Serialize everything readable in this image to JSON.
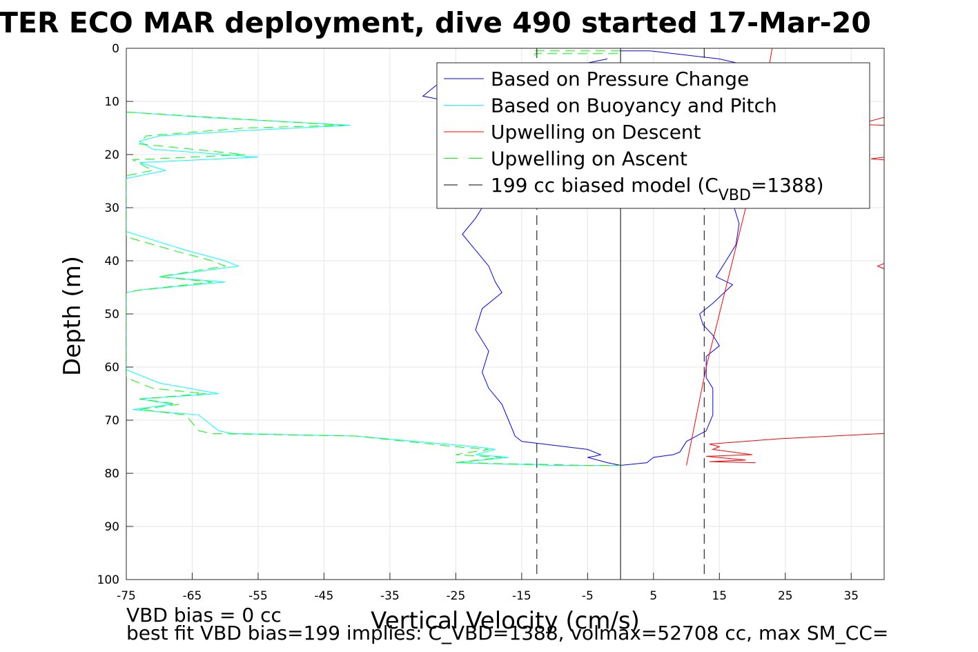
{
  "chart_data": {
    "type": "line",
    "title": "TER ECO MAR deployment, dive 490 started 17-Mar-20",
    "xlabel": "Vertical Velocity (cm/s)",
    "ylabel": "Depth (m)",
    "xlim": [
      -75,
      40
    ],
    "ylim": [
      0,
      100
    ],
    "y_reversed": true,
    "grid": true,
    "xticks": [
      -75,
      -65,
      -55,
      -45,
      -35,
      -25,
      -15,
      -5,
      5,
      15,
      25,
      35
    ],
    "yticks": [
      0,
      10,
      20,
      30,
      40,
      50,
      60,
      70,
      80,
      90,
      100
    ],
    "legend": {
      "placement": "top-right",
      "entries": [
        {
          "label": "Based on Pressure Change",
          "color": "#0000ff",
          "style": "solid"
        },
        {
          "label": "Based on Buoyancy and Pitch",
          "color": "#00ffff",
          "style": "solid"
        },
        {
          "label": "Upwelling on Descent",
          "color": "#ff0000",
          "style": "solid"
        },
        {
          "label": "Upwelling on Ascent",
          "color": "#00ff00",
          "style": "dashed"
        },
        {
          "label": "199 cc biased model (C",
          "label_sub": "VBD",
          "label_tail": "=1388)",
          "color": "#000000",
          "style": "dashed"
        }
      ]
    },
    "series": [
      {
        "name": "Based on Pressure Change",
        "color": "#0000ff",
        "dash": "",
        "points": [
          [
            0,
            0.5
          ],
          [
            4.5,
            0.5
          ],
          [
            15,
            2
          ],
          [
            22,
            4
          ],
          [
            17,
            7
          ],
          [
            10,
            12
          ],
          [
            8,
            18
          ],
          [
            9,
            25
          ],
          [
            17,
            29
          ],
          [
            18,
            33
          ],
          [
            17.5,
            37
          ],
          [
            16,
            40
          ],
          [
            14.5,
            43
          ],
          [
            17,
            44.5
          ],
          [
            14,
            48
          ],
          [
            12,
            50
          ],
          [
            12.5,
            52
          ],
          [
            14,
            54
          ],
          [
            15,
            56
          ],
          [
            13,
            58
          ],
          [
            13,
            62
          ],
          [
            14,
            64
          ],
          [
            14,
            69
          ],
          [
            13,
            72
          ],
          [
            10,
            74
          ],
          [
            9,
            76
          ],
          [
            8,
            76.5
          ],
          [
            5,
            77
          ],
          [
            4,
            78
          ],
          [
            0,
            78.5
          ],
          [
            -2,
            78
          ],
          [
            -5,
            77
          ],
          [
            -4,
            76.8
          ],
          [
            -3,
            76.5
          ],
          [
            -5,
            75.5
          ],
          [
            -15,
            74
          ],
          [
            -16,
            73
          ],
          [
            -17,
            70
          ],
          [
            -18,
            67
          ],
          [
            -20,
            64
          ],
          [
            -21,
            61
          ],
          [
            -20,
            57
          ],
          [
            -21,
            55
          ],
          [
            -22,
            53
          ],
          [
            -21,
            49
          ],
          [
            -18,
            46
          ],
          [
            -19,
            44
          ],
          [
            -20,
            41
          ],
          [
            -22,
            38
          ],
          [
            -24,
            35
          ],
          [
            -22,
            32
          ],
          [
            -20,
            28
          ],
          [
            -18,
            24
          ],
          [
            -21,
            16
          ],
          [
            -26,
            10
          ],
          [
            -30,
            9
          ],
          [
            -28,
            7
          ],
          [
            -18,
            5
          ],
          [
            -8,
            3.5
          ],
          [
            -2,
            2
          ]
        ]
      },
      {
        "name": "Based on Buoyancy and Pitch",
        "color": "#00ffff",
        "dash": "",
        "points": [
          [
            -75,
            12
          ],
          [
            -63,
            13
          ],
          [
            -41,
            14.5
          ],
          [
            -57,
            15.5
          ],
          [
            -70,
            16.5
          ],
          [
            -73,
            17.5
          ],
          [
            -71,
            19
          ],
          [
            -55,
            20.5
          ],
          [
            -73,
            21.5
          ],
          [
            -69,
            23
          ],
          [
            -75,
            24.5
          ],
          [
            -75,
            34.5
          ],
          [
            -66,
            38
          ],
          [
            -60,
            40
          ],
          [
            -58,
            41
          ],
          [
            -70,
            43
          ],
          [
            -60,
            44
          ],
          [
            -73,
            45.5
          ],
          [
            -75,
            46
          ],
          [
            -75,
            60.5
          ],
          [
            -70,
            63
          ],
          [
            -61,
            65
          ],
          [
            -73,
            66
          ],
          [
            -68,
            67
          ],
          [
            -74,
            68
          ],
          [
            -64,
            69
          ],
          [
            -61,
            72
          ],
          [
            -59,
            72.5
          ],
          [
            -40,
            73
          ],
          [
            -22,
            75
          ],
          [
            -19,
            75.5
          ],
          [
            -22,
            76.5
          ],
          [
            -17,
            77
          ],
          [
            -25,
            78
          ],
          [
            -10,
            78.5
          ],
          [
            0,
            78.5
          ]
        ]
      },
      {
        "name": "Upwelling on Descent",
        "color": "#ff0000",
        "dash": "",
        "points": [
          [
            23,
            0
          ],
          [
            19,
            30
          ],
          [
            15,
            50
          ],
          [
            13,
            60
          ],
          [
            10,
            78.5
          ]
        ]
      },
      {
        "name": "Upwelling on Descent",
        "color": "#ff0000",
        "dash": "",
        "points": [
          [
            40,
            72.5
          ],
          [
            24,
            73.5
          ],
          [
            13.5,
            74.5
          ],
          [
            15,
            75
          ],
          [
            14,
            75.5
          ],
          [
            20,
            76.5
          ],
          [
            13,
            76.8
          ],
          [
            19,
            77.5
          ],
          [
            13.5,
            77.8
          ],
          [
            20.5,
            78
          ]
        ]
      },
      {
        "name": "Upwelling on Descent",
        "color": "#ff0000",
        "dash": "",
        "points": [
          [
            40,
            13
          ],
          [
            36,
            14.3
          ],
          [
            40,
            14.5
          ]
        ]
      },
      {
        "name": "Upwelling on Descent",
        "color": "#ff0000",
        "dash": "",
        "points": [
          [
            40,
            20.5
          ],
          [
            38,
            20.8
          ],
          [
            40,
            21
          ]
        ]
      },
      {
        "name": "Upwelling on Descent",
        "color": "#ff0000",
        "dash": "",
        "points": [
          [
            40,
            40.5
          ],
          [
            39,
            41
          ],
          [
            40,
            41.5
          ]
        ]
      },
      {
        "name": "Upwelling on Ascent",
        "color": "#00ff00",
        "dash": "14,8",
        "points": [
          [
            -75,
            12
          ],
          [
            -62,
            13
          ],
          [
            -42,
            14.5
          ],
          [
            -57,
            15
          ],
          [
            -72,
            16.5
          ],
          [
            -73,
            18
          ],
          [
            -57,
            20
          ],
          [
            -74,
            21
          ],
          [
            -71,
            23
          ],
          [
            -75,
            24
          ],
          [
            -75,
            35.5
          ],
          [
            -68,
            38
          ],
          [
            -62,
            40
          ],
          [
            -60,
            41
          ],
          [
            -70,
            43
          ],
          [
            -62,
            44
          ],
          [
            -73,
            45.5
          ],
          [
            -75,
            46
          ],
          [
            -75,
            62
          ],
          [
            -71,
            64
          ],
          [
            -63,
            65
          ],
          [
            -73,
            66
          ],
          [
            -67,
            67
          ],
          [
            -73,
            68
          ],
          [
            -66,
            69
          ],
          [
            -64,
            72
          ],
          [
            -62,
            72.5
          ],
          [
            -40,
            73
          ],
          [
            -25,
            75
          ],
          [
            -20,
            75.5
          ],
          [
            -25,
            76.5
          ],
          [
            -18,
            77
          ],
          [
            -25,
            78
          ],
          [
            -5,
            78.5
          ],
          [
            0,
            78.5
          ]
        ]
      },
      {
        "name": "Upwelling on Ascent",
        "color": "#00ff00",
        "dash": "14,8",
        "points": [
          [
            -13,
            0.5
          ],
          [
            0,
            0.5
          ],
          [
            0,
            1
          ],
          [
            -13,
            1
          ],
          [
            -13,
            2.5
          ]
        ]
      },
      {
        "name": "199 cc biased model",
        "color": "#000000",
        "dash": "14,8",
        "points": [
          [
            -12.7,
            0
          ],
          [
            -12.7,
            100
          ]
        ]
      },
      {
        "name": "199 cc biased model",
        "color": "#000000",
        "dash": "14,8",
        "points": [
          [
            12.7,
            0
          ],
          [
            12.7,
            100
          ]
        ]
      },
      {
        "name": "199 cc biased model",
        "color": "#000000",
        "dash": "",
        "points": [
          [
            0,
            0
          ],
          [
            0,
            100
          ]
        ]
      }
    ]
  },
  "footer": {
    "line1": "VBD bias = 0 cc",
    "line2": "best fit VBD bias=199 implies: C_VBD=1388, volmax=52708 cc, max SM_CC="
  }
}
